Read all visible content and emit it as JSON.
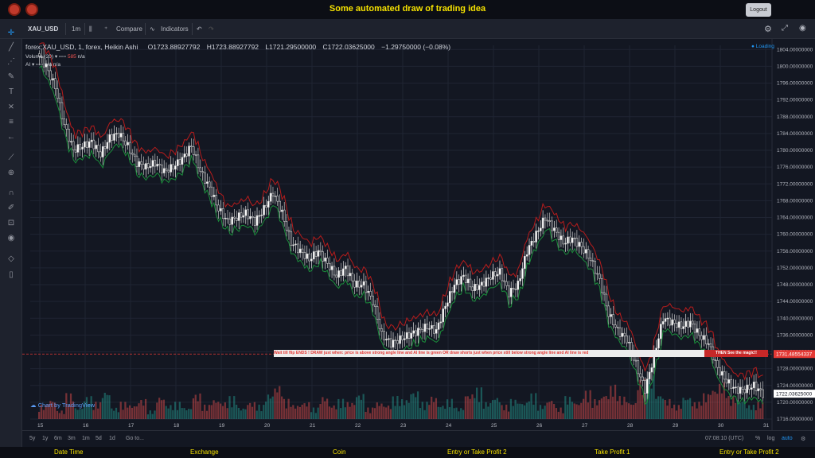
{
  "app": {
    "title": "Some automated draw of trading idea",
    "logout_label": "Logout"
  },
  "toolbar": {
    "symbol": "XAU_USD",
    "interval": "1m",
    "compare_label": "Compare",
    "indicators_label": "Indicators"
  },
  "chart_info": {
    "symbol_line": "forex:XAU_USD, 1, forex, Heikin Ashi",
    "open": "O1723.88927792",
    "high": "H1723.88927792",
    "low": "L1721.29500000",
    "close": "C1722.03625000",
    "change": "−1.29750000 (−0.08%)",
    "loading": "Loading",
    "volume_label": "Volume (20)",
    "volume_value": "585",
    "volume_na": "n/a",
    "ai_label": "AI",
    "ai_value_1": "n/a",
    "ai_value_2": "n/a"
  },
  "banner": {
    "text": "Wait till flip ENDS ! DRAW just when: price is above strong angle line and AI line is green OR draw shorts just when price still below strong angle line and AI line is red",
    "magic": "THEN See the magic!!"
  },
  "price_markers": {
    "red_level": "1731.48554337",
    "last_price": "1722.03625000"
  },
  "chart_data": {
    "type": "candlestick",
    "y_ticks": [
      "1804.00000000",
      "1800.00000000",
      "1796.00000000",
      "1792.00000000",
      "1788.00000000",
      "1784.00000000",
      "1780.00000000",
      "1776.00000000",
      "1772.00000000",
      "1768.00000000",
      "1764.00000000",
      "1760.00000000",
      "1756.00000000",
      "1752.00000000",
      "1748.00000000",
      "1744.00000000",
      "1740.00000000",
      "1736.00000000",
      "1732.00000000",
      "1728.00000000",
      "1724.00000000",
      "1720.00000000",
      "1716.00000000"
    ],
    "ylim": [
      1716,
      1805
    ],
    "x_ticks": [
      "15",
      "16",
      "17",
      "18",
      "19",
      "20",
      "21",
      "22",
      "23",
      "24",
      "25",
      "26",
      "27",
      "28",
      "29",
      "30",
      "31"
    ],
    "price_path": [
      1803,
      1800,
      1795,
      1786,
      1780,
      1781,
      1782,
      1779,
      1783,
      1784,
      1781,
      1777,
      1776,
      1777,
      1775,
      1776,
      1778,
      1781,
      1775,
      1771,
      1766,
      1763,
      1764,
      1765,
      1763,
      1766,
      1770,
      1765,
      1758,
      1756,
      1754,
      1756,
      1753,
      1750,
      1752,
      1748,
      1748,
      1744,
      1736,
      1734,
      1735,
      1736,
      1737,
      1738,
      1737,
      1743,
      1748,
      1750,
      1747,
      1748,
      1750,
      1751,
      1746,
      1748,
      1756,
      1760,
      1764,
      1761,
      1758,
      1759,
      1757,
      1754,
      1749,
      1741,
      1737,
      1735,
      1729,
      1723,
      1731,
      1740,
      1739,
      1738,
      1739,
      1736,
      1734,
      1728,
      1725,
      1723,
      1723,
      1724,
      1722
    ],
    "volume": [
      5,
      7,
      3,
      9,
      4,
      8,
      6,
      10,
      4,
      6,
      5,
      7,
      3,
      8,
      5,
      6,
      4,
      9,
      5,
      7,
      6,
      8,
      4,
      6,
      5,
      9,
      12,
      7,
      5,
      6,
      4,
      8,
      5,
      7,
      6,
      9,
      4,
      6,
      5,
      8,
      7,
      10,
      6,
      8,
      5,
      7,
      4,
      9,
      11,
      6,
      8,
      5,
      7,
      6,
      9,
      5,
      7,
      4,
      8,
      6,
      10,
      7,
      9,
      12,
      8,
      6,
      14,
      16,
      9,
      7,
      5,
      8,
      6,
      9,
      11,
      13,
      8,
      7,
      5,
      6,
      4
    ],
    "series": [
      {
        "name": "Volume",
        "color": "#ef5350"
      },
      {
        "name": "AI",
        "color": "#26a69a"
      }
    ]
  },
  "time_panel": {
    "ranges": [
      "5y",
      "1y",
      "6m",
      "3m",
      "1m",
      "5d",
      "1d"
    ],
    "goto_label": "Go to...",
    "clock": "07:08:10 (UTC)",
    "percent": "%",
    "log": "log",
    "auto": "auto"
  },
  "watermark": "Chart by TradingView",
  "footer": {
    "items": [
      "Date Time",
      "Exchange",
      "Coin",
      "Entry or Take Profit 2",
      "Take Profit 1",
      "Entry or Take Profit 2"
    ]
  }
}
